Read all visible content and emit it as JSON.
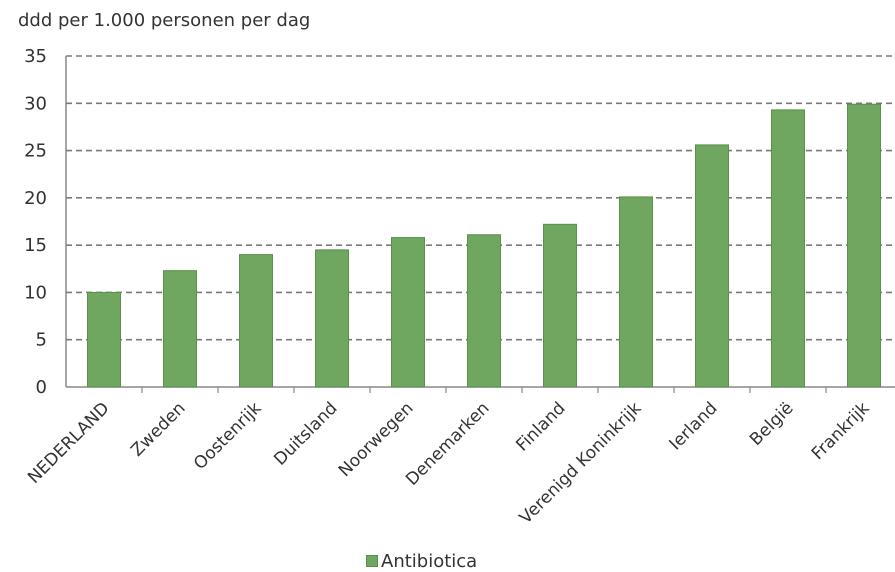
{
  "chart_data": {
    "type": "bar",
    "ylabel": "ddd per 1.000 personen per dag",
    "categories": [
      "NEDERLAND",
      "Zweden",
      "Oostenrijk",
      "Duitsland",
      "Noorwegen",
      "Denemarken",
      "Finland",
      "Verenigd Koninkrijk",
      "Ierland",
      "België",
      "Frankrijk"
    ],
    "series": [
      {
        "name": "Antibiotica",
        "values": [
          10.0,
          12.3,
          14.0,
          14.5,
          15.8,
          16.1,
          17.2,
          20.1,
          25.6,
          29.3,
          29.9
        ]
      }
    ],
    "ylim": [
      0,
      35
    ],
    "yticks": [
      0,
      5,
      10,
      15,
      20,
      25,
      30,
      35
    ],
    "grid": true,
    "legend_position": "bottom",
    "bar_color": "#6fa660"
  }
}
